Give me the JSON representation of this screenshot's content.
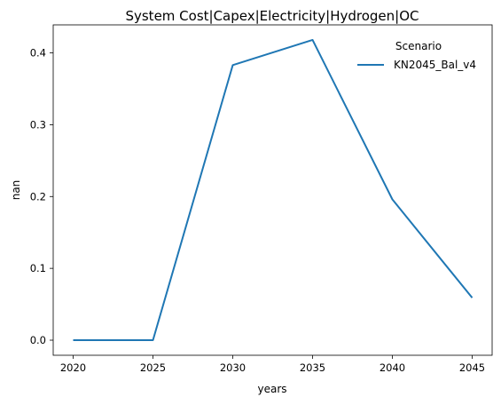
{
  "chart_data": {
    "type": "line",
    "title": "System Cost|Capex|Electricity|Hydrogen|OC",
    "xlabel": "years",
    "ylabel": "nan",
    "x": [
      2020,
      2025,
      2030,
      2035,
      2040,
      2045
    ],
    "xticks": [
      "2020",
      "2025",
      "2030",
      "2035",
      "2040",
      "2045"
    ],
    "yticks": [
      "0.0",
      "0.1",
      "0.2",
      "0.3",
      "0.4"
    ],
    "ytick_values": [
      0.0,
      0.1,
      0.2,
      0.3,
      0.4
    ],
    "ylim": [
      -0.021,
      0.439
    ],
    "xlim": [
      2018.75,
      2046.25
    ],
    "legend": {
      "title": "Scenario",
      "placement": "top-right"
    },
    "grid": false,
    "series": [
      {
        "name": "KN2045_Bal_v4",
        "color": "#1f77b4",
        "values": [
          0.0,
          0.0,
          0.383,
          0.418,
          0.196,
          0.059
        ]
      }
    ]
  }
}
